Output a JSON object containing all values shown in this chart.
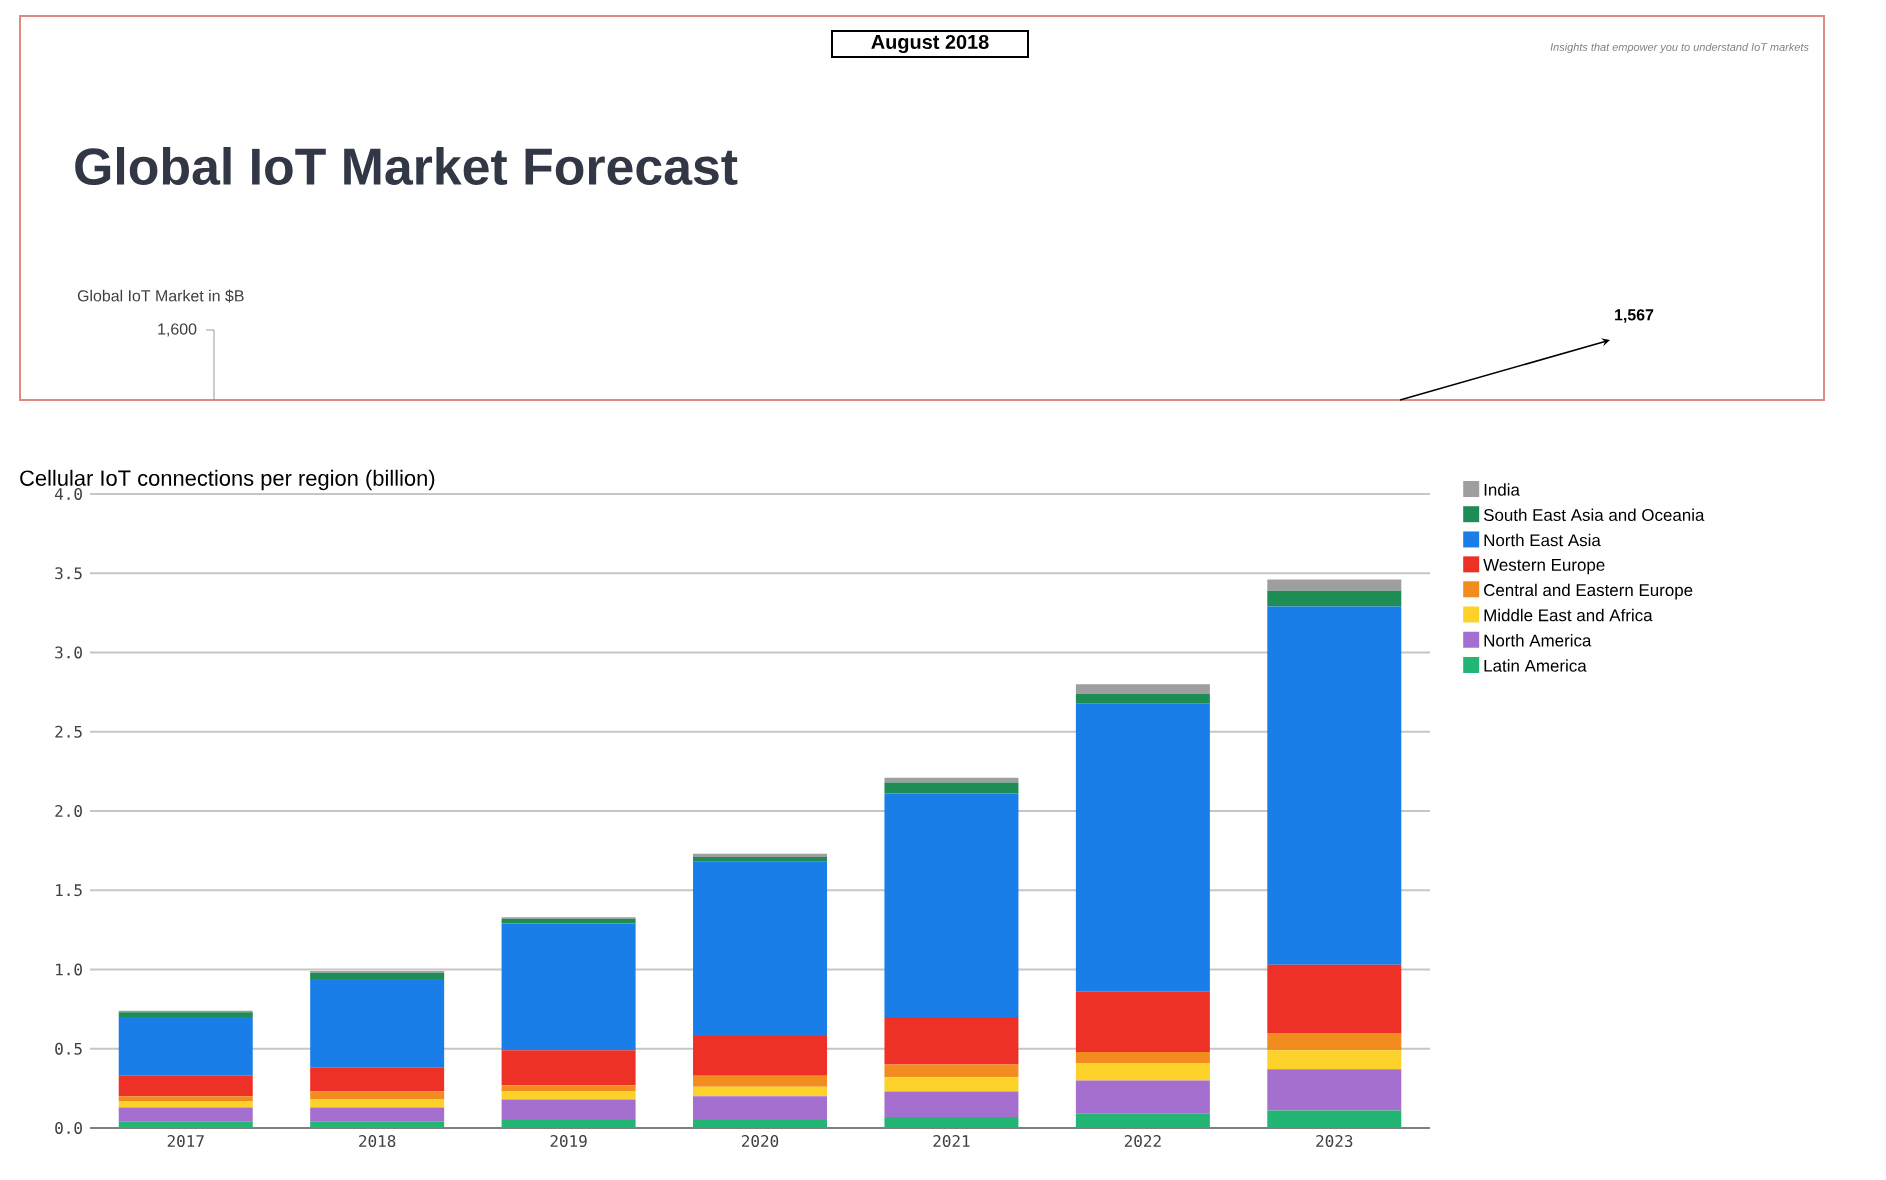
{
  "chart_data": [
    {
      "type": "other",
      "title": "Global IoT Market Forecast",
      "subtitle": "August 2018",
      "annotations": [
        "Insights that empower you to understand IoT markets",
        "Global IoT Market in $B",
        "1,600",
        "1,567"
      ]
    },
    {
      "type": "bar",
      "stacked": true,
      "title": "Cellular IoT connections per region (billion)",
      "categories": [
        "2017",
        "2018",
        "2019",
        "2020",
        "2021",
        "2022",
        "2023"
      ],
      "ylim": [
        0,
        4
      ],
      "yticks": [
        {
          "value": 0,
          "label": "0.0"
        },
        {
          "value": 0.5,
          "label": "0.5"
        },
        {
          "value": 1,
          "label": "1.0"
        },
        {
          "value": 1.5,
          "label": "1.5"
        },
        {
          "value": 2,
          "label": "2.0"
        },
        {
          "value": 2.5,
          "label": "2.5"
        },
        {
          "value": 3,
          "label": "3.0"
        },
        {
          "value": 3.5,
          "label": "3.5"
        },
        {
          "value": 4,
          "label": "4.0"
        }
      ],
      "grid": "y",
      "legend": "right",
      "series": [
        {
          "name": "Latin America",
          "color": "#22b573",
          "values": [
            0.04,
            0.04,
            0.05,
            0.05,
            0.07,
            0.09,
            0.11
          ]
        },
        {
          "name": "North America",
          "color": "#a56fd0",
          "values": [
            0.09,
            0.09,
            0.13,
            0.15,
            0.16,
            0.21,
            0.26
          ]
        },
        {
          "name": "Middle East and Africa",
          "color": "#fcd12a",
          "values": [
            0.04,
            0.05,
            0.05,
            0.06,
            0.09,
            0.11,
            0.12
          ]
        },
        {
          "name": "Central and Eastern Europe",
          "color": "#f28c1e",
          "values": [
            0.03,
            0.05,
            0.04,
            0.07,
            0.08,
            0.07,
            0.11
          ]
        },
        {
          "name": "Western Europe",
          "color": "#ee3126",
          "values": [
            0.13,
            0.15,
            0.22,
            0.25,
            0.3,
            0.38,
            0.43
          ]
        },
        {
          "name": "North East Asia",
          "color": "#1a7ee8",
          "values": [
            0.37,
            0.56,
            0.8,
            1.1,
            1.41,
            1.82,
            2.26
          ]
        },
        {
          "name": "South East Asia and Oceania",
          "color": "#1e8c55",
          "values": [
            0.03,
            0.04,
            0.03,
            0.03,
            0.07,
            0.06,
            0.1
          ]
        },
        {
          "name": "India",
          "color": "#9e9e9e",
          "values": [
            0.01,
            0.01,
            0.01,
            0.02,
            0.03,
            0.06,
            0.07
          ]
        }
      ]
    }
  ]
}
